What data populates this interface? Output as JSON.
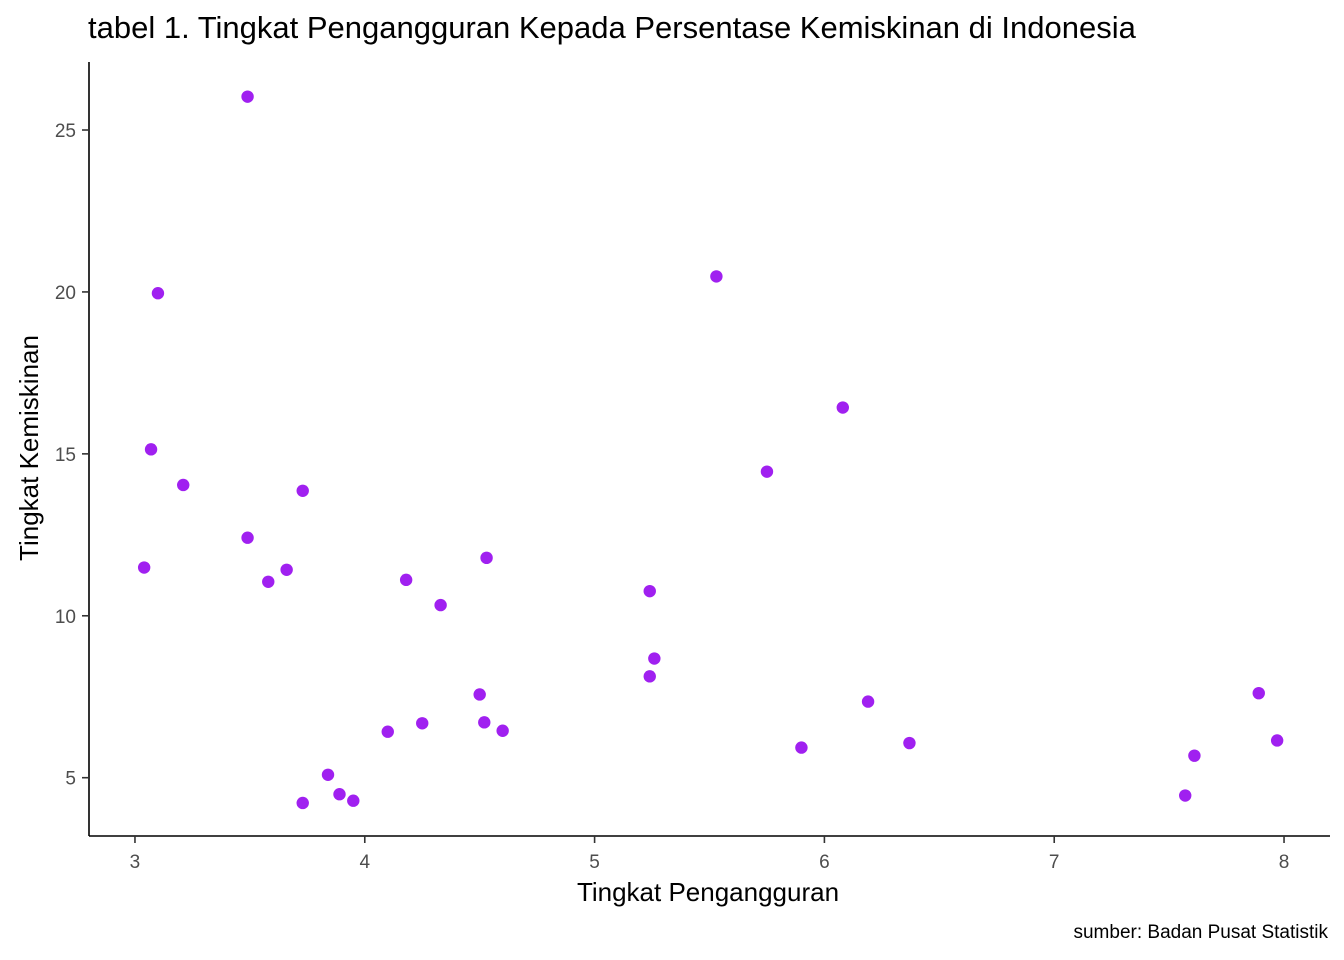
{
  "title": "tabel 1. Tingkat Pengangguran Kepada Persentase Kemiskinan di Indonesia",
  "caption": "sumber: Badan Pusat Statistik",
  "chart_data": {
    "type": "scatter",
    "title": "tabel 1. Tingkat Pengangguran Kepada Persentase Kemiskinan di Indonesia",
    "xlabel": "Tingkat Pengangguran",
    "ylabel": "Tingkat Kemiskinan",
    "xlim": [
      2.8,
      8.2
    ],
    "ylim": [
      3.2,
      27.1
    ],
    "xticks": [
      3,
      4,
      5,
      6,
      7,
      8
    ],
    "yticks": [
      5,
      10,
      15,
      20,
      25
    ],
    "grid": false,
    "legend": "none",
    "point_color": "#A020F0",
    "points": [
      {
        "x": 3.49,
        "y": 26.03
      },
      {
        "x": 3.1,
        "y": 19.96
      },
      {
        "x": 3.07,
        "y": 15.14
      },
      {
        "x": 3.21,
        "y": 14.04
      },
      {
        "x": 3.04,
        "y": 11.49
      },
      {
        "x": 3.49,
        "y": 12.41
      },
      {
        "x": 3.58,
        "y": 11.05
      },
      {
        "x": 3.66,
        "y": 11.42
      },
      {
        "x": 3.73,
        "y": 13.86
      },
      {
        "x": 3.73,
        "y": 4.22
      },
      {
        "x": 3.84,
        "y": 5.09
      },
      {
        "x": 3.89,
        "y": 4.49
      },
      {
        "x": 3.95,
        "y": 4.29
      },
      {
        "x": 4.1,
        "y": 6.42
      },
      {
        "x": 4.18,
        "y": 11.11
      },
      {
        "x": 4.25,
        "y": 6.68
      },
      {
        "x": 4.33,
        "y": 10.33
      },
      {
        "x": 4.5,
        "y": 7.57
      },
      {
        "x": 4.52,
        "y": 6.71
      },
      {
        "x": 4.53,
        "y": 11.79
      },
      {
        "x": 4.6,
        "y": 6.45
      },
      {
        "x": 5.24,
        "y": 10.76
      },
      {
        "x": 5.24,
        "y": 8.13
      },
      {
        "x": 5.26,
        "y": 8.68
      },
      {
        "x": 5.53,
        "y": 20.48
      },
      {
        "x": 5.75,
        "y": 14.45
      },
      {
        "x": 5.9,
        "y": 5.93
      },
      {
        "x": 6.08,
        "y": 16.43
      },
      {
        "x": 6.19,
        "y": 7.35
      },
      {
        "x": 6.37,
        "y": 6.07
      },
      {
        "x": 7.57,
        "y": 4.45
      },
      {
        "x": 7.61,
        "y": 5.68
      },
      {
        "x": 7.89,
        "y": 7.61
      },
      {
        "x": 7.97,
        "y": 6.15
      }
    ]
  }
}
